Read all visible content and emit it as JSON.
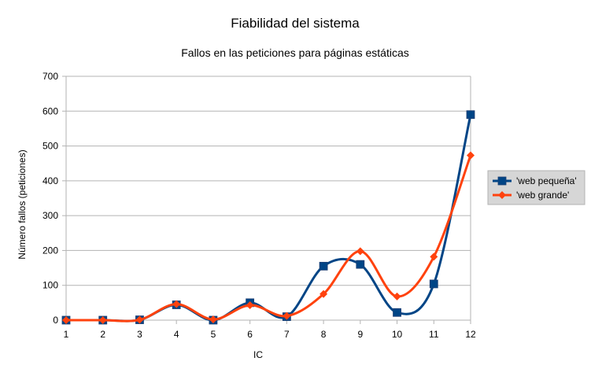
{
  "chart_data": {
    "type": "line",
    "title": "Fiabilidad del sistema",
    "subtitle": "Fallos en las peticiones para páginas estáticas",
    "xlabel": "IC",
    "ylabel": "Número fallos (peticiones)",
    "categories": [
      "1",
      "2",
      "3",
      "4",
      "5",
      "6",
      "7",
      "8",
      "9",
      "10",
      "11",
      "12"
    ],
    "ylim": [
      0,
      700
    ],
    "yticks": [
      0,
      100,
      200,
      300,
      400,
      500,
      600,
      700
    ],
    "grid": true,
    "legend_position": "right",
    "smooth": true,
    "series": [
      {
        "name": "'web pequeña'",
        "color": "#004586",
        "marker": "square",
        "values": [
          0,
          0,
          1,
          44,
          0,
          50,
          10,
          155,
          160,
          22,
          104,
          590
        ]
      },
      {
        "name": "'web grande'",
        "color": "#ff420e",
        "marker": "diamond",
        "values": [
          0,
          0,
          1,
          46,
          2,
          43,
          12,
          75,
          198,
          68,
          182,
          473
        ]
      }
    ]
  }
}
